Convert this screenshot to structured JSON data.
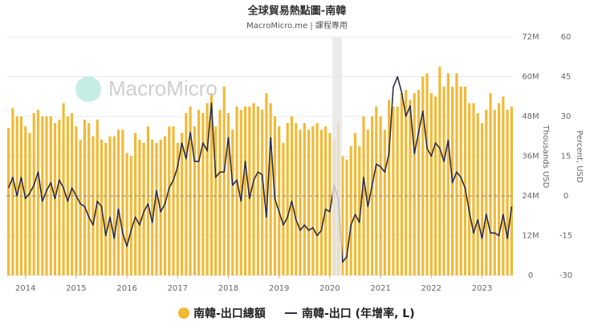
{
  "chart_data": {
    "type": "bar_line",
    "title": "全球貿易熱點圖-南韓",
    "subtitle": "MacroMicro.me | 課程專用",
    "watermark": "MacroMicro",
    "y_label": "Thousands USD",
    "y2_label": "Percent, USD",
    "x": [
      "2013-09",
      "2013-10",
      "2013-11",
      "2013-12",
      "2014-01",
      "2014-02",
      "2014-03",
      "2014-04",
      "2014-05",
      "2014-06",
      "2014-07",
      "2014-08",
      "2014-09",
      "2014-10",
      "2014-11",
      "2014-12",
      "2015-01",
      "2015-02",
      "2015-03",
      "2015-04",
      "2015-05",
      "2015-06",
      "2015-07",
      "2015-08",
      "2015-09",
      "2015-10",
      "2015-11",
      "2015-12",
      "2016-01",
      "2016-02",
      "2016-03",
      "2016-04",
      "2016-05",
      "2016-06",
      "2016-07",
      "2016-08",
      "2016-09",
      "2016-10",
      "2016-11",
      "2016-12",
      "2017-01",
      "2017-02",
      "2017-03",
      "2017-04",
      "2017-05",
      "2017-06",
      "2017-07",
      "2017-08",
      "2017-09",
      "2017-10",
      "2017-11",
      "2017-12",
      "2018-01",
      "2018-02",
      "2018-03",
      "2018-04",
      "2018-05",
      "2018-06",
      "2018-07",
      "2018-08",
      "2018-09",
      "2018-10",
      "2018-11",
      "2018-12",
      "2019-01",
      "2019-02",
      "2019-03",
      "2019-04",
      "2019-05",
      "2019-06",
      "2019-07",
      "2019-08",
      "2019-09",
      "2019-10",
      "2019-11",
      "2019-12",
      "2020-01",
      "2020-02",
      "2020-03",
      "2020-04",
      "2020-05",
      "2020-06",
      "2020-07",
      "2020-08",
      "2020-09",
      "2020-10",
      "2020-11",
      "2020-12",
      "2021-01",
      "2021-02",
      "2021-03",
      "2021-04",
      "2021-05",
      "2021-06",
      "2021-07",
      "2021-08",
      "2021-09",
      "2021-10",
      "2021-11",
      "2021-12",
      "2022-01",
      "2022-02",
      "2022-03",
      "2022-04",
      "2022-05",
      "2022-06",
      "2022-07",
      "2022-08",
      "2022-09",
      "2022-10",
      "2022-11",
      "2022-12",
      "2023-01",
      "2023-02",
      "2023-03",
      "2023-04",
      "2023-05",
      "2023-06",
      "2023-07",
      "2023-08"
    ],
    "series": [
      {
        "name": "南韓-出口總額",
        "type": "bar",
        "color": "#f2b934",
        "axis": "y",
        "values": [
          44500000,
          50500000,
          48000000,
          48000000,
          45000000,
          43000000,
          49000000,
          50000000,
          48000000,
          48000000,
          48000000,
          46000000,
          47000000,
          52000000,
          48000000,
          49000000,
          45000000,
          41000000,
          47000000,
          46000000,
          42000000,
          47000000,
          41000000,
          40000000,
          42000000,
          42000000,
          44000000,
          44000000,
          37000000,
          36000000,
          43000000,
          41000000,
          40000000,
          45000000,
          41000000,
          40000000,
          41000000,
          42000000,
          45000000,
          45000000,
          40000000,
          43000000,
          49000000,
          51000000,
          45000000,
          50000000,
          49000000,
          52000000,
          55000000,
          45000000,
          50000000,
          57000000,
          49000000,
          44000000,
          51000000,
          50000000,
          51000000,
          51000000,
          52000000,
          51000000,
          50000000,
          55000000,
          52000000,
          48000000,
          45000000,
          40000000,
          46000000,
          48000000,
          46000000,
          44000000,
          46000000,
          44000000,
          45000000,
          46000000,
          44000000,
          45000000,
          43000000,
          41000000,
          46000000,
          36000000,
          35000000,
          39000000,
          43000000,
          39000000,
          48000000,
          44000000,
          48000000,
          51000000,
          48000000,
          44000000,
          53000000,
          51000000,
          51000000,
          55000000,
          56000000,
          53000000,
          55000000,
          56000000,
          60000000,
          61000000,
          55000000,
          54000000,
          63000000,
          57000000,
          61000000,
          57000000,
          61000000,
          57000000,
          57000000,
          52000000,
          52000000,
          49000000,
          46000000,
          50000000,
          55000000,
          50000000,
          52000000,
          54000000,
          50000000,
          51000000
        ]
      },
      {
        "name": "南韓-出口 (年增率, L)",
        "type": "line",
        "color": "#2b2f44",
        "axis": "y2",
        "values": [
          3,
          7,
          0,
          7,
          -1,
          1,
          4,
          9,
          -2,
          2,
          5,
          -1,
          6,
          3,
          -2,
          3,
          0,
          -3,
          -4,
          -8,
          -11,
          -2,
          -4,
          -15,
          -8,
          -16,
          -5,
          -14,
          -19,
          -13,
          -8,
          -11,
          -6,
          -3,
          -10,
          2,
          -6,
          -3,
          3,
          6,
          11,
          20,
          14,
          24,
          13,
          13,
          20,
          17,
          35,
          7,
          9,
          9,
          22,
          4,
          6,
          -2,
          13,
          -1,
          6,
          9,
          8,
          -8,
          22,
          -1,
          -6,
          -11,
          -8,
          -2,
          -9,
          -13,
          -11,
          -13,
          -12,
          -15,
          -13,
          -5,
          -6,
          4,
          -1,
          -25,
          -23,
          -11,
          -7,
          -10,
          7,
          -4,
          4,
          12,
          11,
          9,
          16,
          41,
          45,
          39,
          30,
          34,
          16,
          24,
          32,
          18,
          15,
          20,
          18,
          13,
          21,
          5,
          9,
          7,
          3,
          -6,
          -14,
          -9,
          -16,
          -7,
          -14,
          -14,
          -15,
          -7,
          -16,
          -4
        ]
      }
    ],
    "xticks": [
      {
        "value": "2014-01",
        "label": "2014"
      },
      {
        "value": "2015-01",
        "label": "2015"
      },
      {
        "value": "2016-01",
        "label": "2016"
      },
      {
        "value": "2017-01",
        "label": "2017"
      },
      {
        "value": "2018-01",
        "label": "2018"
      },
      {
        "value": "2019-01",
        "label": "2019"
      },
      {
        "value": "2020-01",
        "label": "2020"
      },
      {
        "value": "2021-01",
        "label": "2021"
      },
      {
        "value": "2022-01",
        "label": "2022"
      },
      {
        "value": "2023-01",
        "label": "2023"
      }
    ],
    "ylim": [
      0,
      72000000
    ],
    "yticks": [
      0,
      {
        "value": 12000000,
        "label": "12M"
      },
      {
        "value": 24000000,
        "label": "24M"
      },
      {
        "value": 36000000,
        "label": "36M"
      },
      {
        "value": 48000000,
        "label": "48M"
      },
      {
        "value": 60000000,
        "label": "60M"
      },
      {
        "value": 72000000,
        "label": "72M"
      }
    ],
    "y2lim": [
      -30,
      60
    ],
    "y2ticks": [
      -30,
      -15,
      0,
      15,
      30,
      45,
      60
    ],
    "grid": true
  }
}
